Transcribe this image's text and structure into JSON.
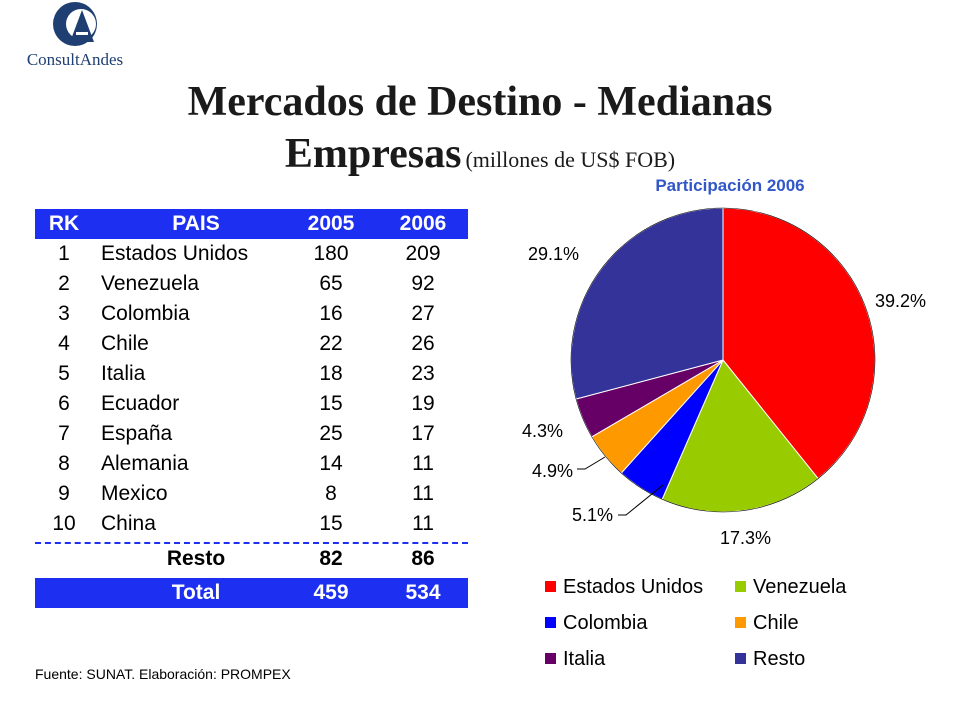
{
  "logo": {
    "monogram": "CA",
    "name": "ConsultAndes"
  },
  "title": {
    "line1": "Mercados de Destino - Medianas",
    "line2_main": "Empresas",
    "line2_unit": "(millones de US$ FOB)"
  },
  "table": {
    "headers": {
      "rk": "RK",
      "pais": "PAIS",
      "y2005": "2005",
      "y2006": "2006"
    },
    "rows": [
      {
        "rk": "1",
        "pais": "Estados Unidos",
        "y2005": "180",
        "y2006": "209"
      },
      {
        "rk": "2",
        "pais": "Venezuela",
        "y2005": "65",
        "y2006": "92"
      },
      {
        "rk": "3",
        "pais": "Colombia",
        "y2005": "16",
        "y2006": "27"
      },
      {
        "rk": "4",
        "pais": "Chile",
        "y2005": "22",
        "y2006": "26"
      },
      {
        "rk": "5",
        "pais": "Italia",
        "y2005": "18",
        "y2006": "23"
      },
      {
        "rk": "6",
        "pais": "Ecuador",
        "y2005": "15",
        "y2006": "19"
      },
      {
        "rk": "7",
        "pais": "España",
        "y2005": "25",
        "y2006": "17"
      },
      {
        "rk": "8",
        "pais": "Alemania",
        "y2005": "14",
        "y2006": "11"
      },
      {
        "rk": "9",
        "pais": "Mexico",
        "y2005": "8",
        "y2006": "11"
      },
      {
        "rk": "10",
        "pais": "China",
        "y2005": "15",
        "y2006": "11"
      }
    ],
    "resto": {
      "pais": "Resto",
      "y2005": "82",
      "y2006": "86"
    },
    "total": {
      "pais": "Total",
      "y2005": "459",
      "y2006": "534"
    }
  },
  "chart_data": {
    "type": "pie",
    "title": "Participación 2006",
    "legend_position": "bottom",
    "slices": [
      {
        "name": "Estados Unidos",
        "value": 39.2,
        "label": "39.2%",
        "color": "#ff0000"
      },
      {
        "name": "Venezuela",
        "value": 17.3,
        "label": "17.3%",
        "color": "#99cc00"
      },
      {
        "name": "Colombia",
        "value": 5.1,
        "label": "5.1%",
        "color": "#0000ff"
      },
      {
        "name": "Chile",
        "value": 4.9,
        "label": "4.9%",
        "color": "#ff9900"
      },
      {
        "name": "Italia",
        "value": 4.3,
        "label": "4.3%",
        "color": "#660066"
      },
      {
        "name": "Resto",
        "value": 29.1,
        "label": "29.1%",
        "color": "#333399"
      }
    ]
  },
  "source": "Fuente: SUNAT. Elaboración: PROMPEX"
}
